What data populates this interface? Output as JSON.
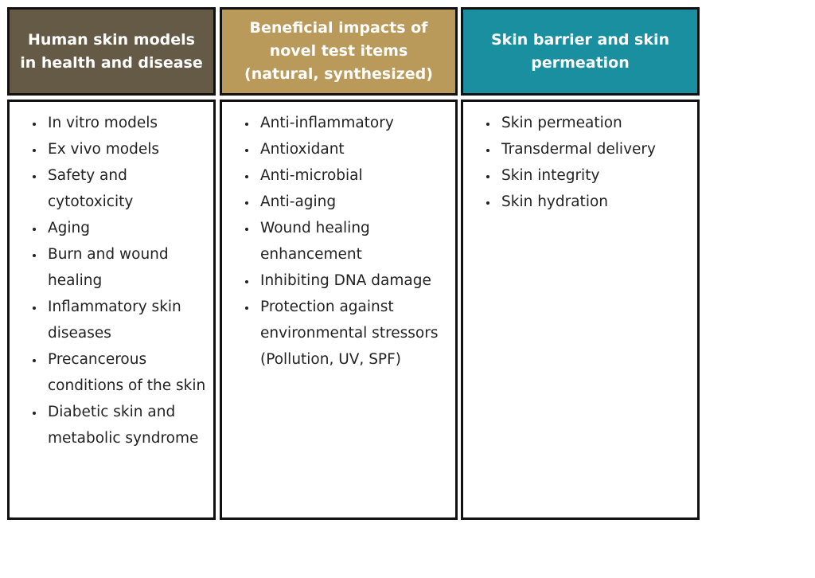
{
  "columns": [
    {
      "title": "Human skin models in health and disease",
      "color": "#655a45",
      "items": [
        "In vitro models",
        "Ex vivo models",
        "Safety and cytotoxicity",
        "Aging",
        "Burn and wound healing",
        "Inflammatory skin diseases",
        "Precancerous conditions of the skin",
        "Diabetic skin and metabolic syndrome"
      ]
    },
    {
      "title": "Beneficial impacts of novel test items (natural, synthesized)",
      "color": "#b99a5b",
      "items": [
        "Anti-inflammatory",
        "Antioxidant",
        "Anti-microbial",
        "Anti-aging",
        "Wound healing enhancement",
        "Inhibiting DNA damage",
        "Protection against environmental stressors (Pollution, UV, SPF)"
      ]
    },
    {
      "title": "Skin barrier and skin permeation",
      "color": "#1a8fa0",
      "items": [
        "Skin permeation",
        "Transdermal delivery",
        "Skin integrity",
        "Skin hydration"
      ]
    }
  ]
}
